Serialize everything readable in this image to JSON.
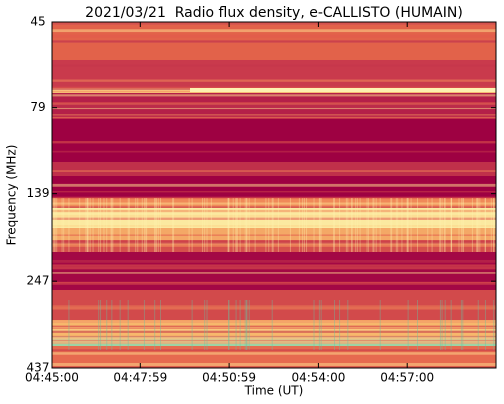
{
  "chart_data": {
    "type": "heatmap",
    "title": "2021/03/21  Radio flux density, e-CALLISTO (HUMAIN)",
    "x_label": "Time (UT)",
    "y_label": "Frequency (MHz)",
    "y_scale": "log",
    "y_inverted": true,
    "ylim": [
      45,
      437
    ],
    "yticks": [
      45,
      79,
      139,
      247,
      437
    ],
    "xlim": [
      17100,
      18000
    ],
    "xticks": [
      {
        "value": 17100,
        "label": "04:45:00"
      },
      {
        "value": 17279,
        "label": "04:47:59"
      },
      {
        "value": 17459,
        "label": "04:50:59"
      },
      {
        "value": 17640,
        "label": "04:54:00"
      },
      {
        "value": 17820,
        "label": "04:57:00"
      }
    ]
  }
}
